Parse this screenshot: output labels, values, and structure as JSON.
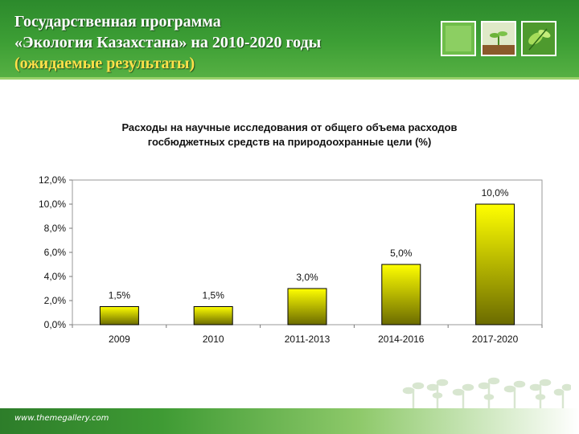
{
  "header": {
    "title_line1": "Государственная программа",
    "title_line2": "«Экология Казахстана» на 2010-2020 годы",
    "title_line3": "(ожидаемые результаты)"
  },
  "footer": {
    "url": "www.themegallery.com"
  },
  "icons": {
    "thumb1": "green-square-thumbnail-icon",
    "thumb2": "seedling-in-soil-icon",
    "thumb3": "green-leaves-icon",
    "decor": "sprout-pattern-icon"
  },
  "colors": {
    "header_green": "#3d9f35",
    "title_highlight": "#ffe04a",
    "bar_top": "#ffff00",
    "bar_bottom": "#6b6b00"
  },
  "chart_data": {
    "type": "bar",
    "title_line1": "Расходы на научные исследования от общего объема расходов",
    "title_line2": "госбюджетных средств на природоохранные цели (%)",
    "categories": [
      "2009",
      "2010",
      "2011-2013",
      "2014-2016",
      "2017-2020"
    ],
    "values": [
      1.5,
      1.5,
      3.0,
      5.0,
      10.0
    ],
    "value_labels": [
      "1,5%",
      "1,5%",
      "3,0%",
      "5,0%",
      "10,0%"
    ],
    "ylim": [
      0,
      12
    ],
    "yticks": [
      "0,0%",
      "2,0%",
      "4,0%",
      "6,0%",
      "8,0%",
      "10,0%",
      "12,0%"
    ],
    "xlabel": "",
    "ylabel": "",
    "legend": false,
    "grid": false
  }
}
